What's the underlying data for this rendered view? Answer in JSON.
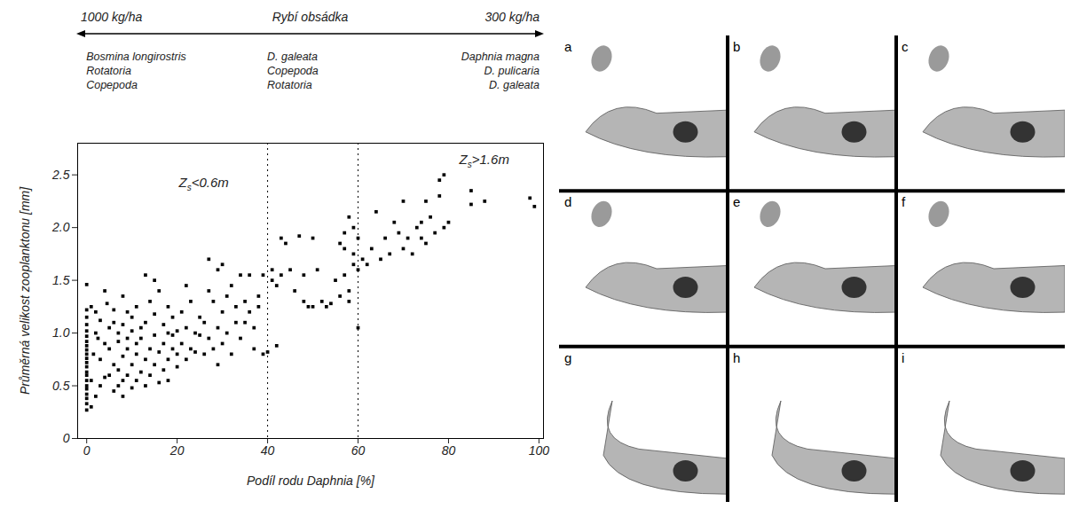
{
  "chart_data": {
    "type": "scatter",
    "x_label": "Podíl rodu Daphnia [%]",
    "y_label": "Průměrná velikost zooplanktonu [mm]",
    "xlim": [
      -2,
      101
    ],
    "ylim": [
      0,
      2.8
    ],
    "xticks": [
      0,
      20,
      40,
      60,
      80,
      100
    ],
    "yticks": [
      0,
      0.5,
      {
        "value": 1,
        "label": "1.0"
      },
      1.5,
      {
        "value": 2,
        "label": "2.0"
      },
      2.5
    ],
    "grid": false,
    "color": "#000000",
    "marker": "square",
    "fish_stock": {
      "title": "Rybí obsádka",
      "left": "1000 kg/ha",
      "right": "300 kg/ha"
    },
    "taxa": [
      [
        "Bosmina longirostris",
        "Rotatoria",
        "Copepoda"
      ],
      [
        "D. galeata",
        "Copepoda",
        "Rotatoria"
      ],
      [
        "Daphnia magna",
        "D. pulicaria",
        "D. galeata"
      ]
    ],
    "dividers": [
      40,
      60
    ],
    "annotations": [
      {
        "text": "Z",
        "subscript": "s",
        "after": "<0.6m",
        "x": 26,
        "y": 2.38
      },
      {
        "text": "Z",
        "subscript": "s",
        "after": ">1.6m",
        "x": 88,
        "y": 2.6
      }
    ],
    "x": [
      0,
      0,
      0,
      0,
      0,
      0,
      0,
      0,
      0,
      0,
      0,
      0,
      0,
      0,
      0,
      0,
      0,
      0,
      0,
      0,
      0,
      0,
      1,
      1,
      1,
      1.5,
      2,
      2,
      2,
      2.5,
      3,
      3,
      3,
      4,
      4,
      4,
      4.5,
      5,
      5,
      5,
      6,
      6,
      6,
      6,
      7,
      7,
      7,
      7,
      8,
      8,
      8,
      8,
      8,
      9,
      9,
      9,
      9,
      10,
      10,
      10,
      10,
      11,
      11,
      11,
      11,
      12,
      12,
      12,
      13,
      13,
      13,
      13,
      14,
      14,
      14,
      15,
      15,
      15,
      15,
      16,
      16,
      16,
      17,
      17,
      17,
      18,
      18,
      18,
      18,
      19,
      19,
      19,
      20,
      20,
      20,
      21,
      21,
      22,
      22,
      22,
      23,
      23,
      24,
      24,
      25,
      25,
      26,
      26,
      27,
      27,
      27,
      28,
      28,
      29,
      29,
      29,
      30,
      30,
      30,
      31,
      31,
      32,
      32,
      33,
      33,
      34,
      34,
      35,
      35,
      36,
      36,
      37,
      37,
      38,
      38,
      39,
      39,
      40,
      41,
      41,
      42,
      42,
      43,
      43,
      44,
      45,
      46,
      47,
      48,
      48,
      49,
      50,
      50,
      51,
      52,
      53,
      54,
      55,
      56,
      56,
      57,
      57,
      57,
      58,
      58,
      58,
      59,
      59,
      59,
      60,
      60,
      60,
      61,
      62,
      63,
      64,
      65,
      66,
      67,
      68,
      69,
      70,
      70,
      71,
      72,
      73,
      74,
      74,
      75,
      75,
      76,
      77,
      78,
      78,
      79,
      79,
      80,
      85,
      85,
      88,
      98,
      99
    ],
    "values": [
      0.27,
      0.33,
      0.38,
      0.42,
      0.47,
      0.5,
      0.55,
      0.6,
      0.63,
      0.68,
      0.72,
      0.76,
      0.8,
      0.84,
      0.88,
      0.92,
      0.97,
      1.02,
      1.08,
      1.15,
      1.22,
      1.46,
      0.3,
      1.25,
      0.55,
      0.8,
      1.2,
      0.4,
      1.0,
      0.95,
      0.5,
      1.12,
      0.75,
      1.4,
      0.58,
      0.9,
      1.28,
      0.6,
      0.85,
      1.05,
      0.45,
      0.7,
      1.1,
      1.22,
      0.5,
      0.65,
      0.92,
      1.0,
      0.4,
      0.55,
      0.78,
      1.08,
      1.35,
      0.6,
      0.85,
      0.95,
      1.2,
      0.48,
      0.7,
      1.02,
      1.15,
      0.55,
      0.8,
      1.25,
      0.9,
      0.63,
      1.05,
      0.95,
      0.5,
      0.75,
      1.1,
      1.55,
      0.85,
      1.3,
      0.6,
      0.7,
      0.98,
      1.18,
      1.5,
      0.53,
      0.82,
      1.4,
      0.65,
      0.9,
      1.08,
      0.75,
      1.0,
      1.25,
      0.55,
      0.85,
      1.15,
      0.98,
      0.8,
      1.02,
      0.68,
      0.9,
      1.2,
      0.75,
      1.05,
      1.45,
      0.85,
      1.3,
      1.0,
      0.82,
      0.98,
      1.15,
      1.1,
      0.8,
      1.7,
      0.95,
      1.4,
      1.3,
      0.85,
      1.6,
      1.05,
      0.7,
      1.65,
      1.2,
      0.9,
      1.0,
      1.35,
      1.45,
      0.8,
      1.1,
      1.25,
      1.55,
      0.95,
      1.1,
      1.3,
      1.55,
      1.2,
      1.05,
      0.85,
      1.25,
      1.35,
      0.8,
      1.55,
      0.82,
      1.5,
      1.6,
      1.45,
      0.88,
      1.9,
      1.55,
      1.85,
      1.6,
      1.4,
      1.92,
      1.3,
      1.55,
      1.25,
      1.25,
      1.9,
      1.6,
      1.3,
      1.25,
      1.28,
      1.5,
      1.35,
      1.85,
      1.8,
      1.95,
      1.55,
      2.1,
      1.3,
      1.4,
      1.65,
      2.0,
      1.75,
      1.05,
      1.6,
      1.9,
      1.7,
      1.65,
      1.8,
      2.15,
      1.7,
      1.9,
      1.75,
      2.05,
      1.95,
      2.25,
      1.8,
      1.9,
      1.75,
      2.0,
      2.05,
      1.9,
      2.25,
      1.85,
      2.1,
      1.95,
      2.45,
      2.3,
      2.5,
      2.0,
      2.05,
      2.35,
      2.22,
      2.25,
      2.28,
      2.2
    ]
  },
  "panels": {
    "labels": [
      "a",
      "b",
      "c",
      "d",
      "e",
      "f",
      "g",
      "h",
      "i"
    ]
  }
}
